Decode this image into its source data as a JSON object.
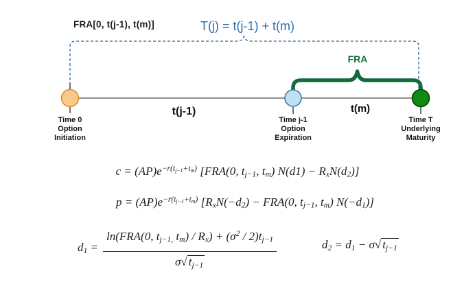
{
  "colors": {
    "background": "#ffffff",
    "dashed_bracket_blue": "#2f6399",
    "equation_blue": "#2a6db0",
    "brace_green": "#15693b",
    "timeline_gray": "#4a4a4a",
    "tick_dark": "#222222",
    "node_orange_fill": "#f8c98c",
    "node_orange_stroke": "#de8f2f",
    "node_blue_fill": "#bfe1f2",
    "node_blue_stroke": "#4078a3",
    "node_green_fill": "#0e8c12",
    "node_green_stroke": "#063f06",
    "label_text": "#111111",
    "formula_text": "#1c1c1c"
  },
  "top": {
    "fra_range_label": "FRA[0, t(j-1), t(m)]",
    "tj_equation": "T(j) = t(j-1) + t(m)"
  },
  "timeline": {
    "brace_label": "FRA",
    "segment_labels": {
      "left": "t(j-1)",
      "right": "t(m)"
    },
    "nodes": [
      {
        "name": "time-0",
        "lines": [
          "Time 0",
          "Option",
          "Initiation"
        ]
      },
      {
        "name": "time-j-1",
        "lines": [
          "Time j-1",
          "Option",
          "Expiration"
        ]
      },
      {
        "name": "time-T",
        "lines": [
          "Time T",
          "Underlying",
          "Maturity"
        ]
      }
    ]
  },
  "formulas": {
    "call": [
      {
        "k": "n",
        "v": "c = (AP)e"
      },
      {
        "k": "sup",
        "parts": [
          {
            "k": "n",
            "v": "−r(t"
          },
          {
            "k": "sub",
            "v": "j−1"
          },
          {
            "k": "n",
            "v": "+t"
          },
          {
            "k": "sub",
            "v": "m"
          },
          {
            "k": "n",
            "v": ")"
          }
        ]
      },
      {
        "k": "n",
        "v": " [FRA(0, t"
      },
      {
        "k": "sub",
        "v": "j−1"
      },
      {
        "k": "n",
        "v": ", t"
      },
      {
        "k": "sub",
        "v": "m"
      },
      {
        "k": "n",
        "v": ") N(d1) − R"
      },
      {
        "k": "sub",
        "v": "x"
      },
      {
        "k": "n",
        "v": "N(d"
      },
      {
        "k": "sub",
        "v": "2"
      },
      {
        "k": "n",
        "v": ")]"
      }
    ],
    "put": [
      {
        "k": "n",
        "v": "p = (AP)e"
      },
      {
        "k": "sup",
        "parts": [
          {
            "k": "n",
            "v": "−r(t"
          },
          {
            "k": "sub",
            "v": "j−1"
          },
          {
            "k": "n",
            "v": "+t"
          },
          {
            "k": "sub",
            "v": "m"
          },
          {
            "k": "n",
            "v": ")"
          }
        ]
      },
      {
        "k": "n",
        "v": " [R"
      },
      {
        "k": "sub",
        "v": "x"
      },
      {
        "k": "n",
        "v": "N(−d"
      },
      {
        "k": "sub",
        "v": "2"
      },
      {
        "k": "n",
        "v": ") − FRA(0, t"
      },
      {
        "k": "sub",
        "v": "j−1"
      },
      {
        "k": "n",
        "v": ", t"
      },
      {
        "k": "sub",
        "v": "m"
      },
      {
        "k": "n",
        "v": ") N(−d"
      },
      {
        "k": "sub",
        "v": "1"
      },
      {
        "k": "n",
        "v": ")]"
      }
    ],
    "d1_lhs": [
      {
        "k": "n",
        "v": "d"
      },
      {
        "k": "sub",
        "v": "1"
      },
      {
        "k": "n",
        "v": " = "
      }
    ],
    "d1_numerator": [
      {
        "k": "n",
        "v": "ln(FRA(0, t"
      },
      {
        "k": "sub",
        "v": "j−1,"
      },
      {
        "k": "n",
        "v": " t"
      },
      {
        "k": "sub",
        "v": "m"
      },
      {
        "k": "n",
        "v": ") / R"
      },
      {
        "k": "sub",
        "v": "x"
      },
      {
        "k": "n",
        "v": ") + (σ"
      },
      {
        "k": "sup",
        "v": "2"
      },
      {
        "k": "n",
        "v": " / 2)t"
      },
      {
        "k": "sub",
        "v": "j−1"
      }
    ],
    "d1_denominator": [
      {
        "k": "n",
        "v": "σ√"
      },
      {
        "k": "rad",
        "parts": [
          {
            "k": "n",
            "v": "t"
          },
          {
            "k": "sub",
            "v": "j−1"
          }
        ]
      }
    ],
    "d2": [
      {
        "k": "n",
        "v": "d"
      },
      {
        "k": "sub",
        "v": "2"
      },
      {
        "k": "n",
        "v": " = d"
      },
      {
        "k": "sub",
        "v": "1"
      },
      {
        "k": "n",
        "v": " − σ√"
      },
      {
        "k": "rad",
        "parts": [
          {
            "k": "n",
            "v": "t"
          },
          {
            "k": "sub",
            "v": "j−1"
          }
        ]
      }
    ]
  }
}
